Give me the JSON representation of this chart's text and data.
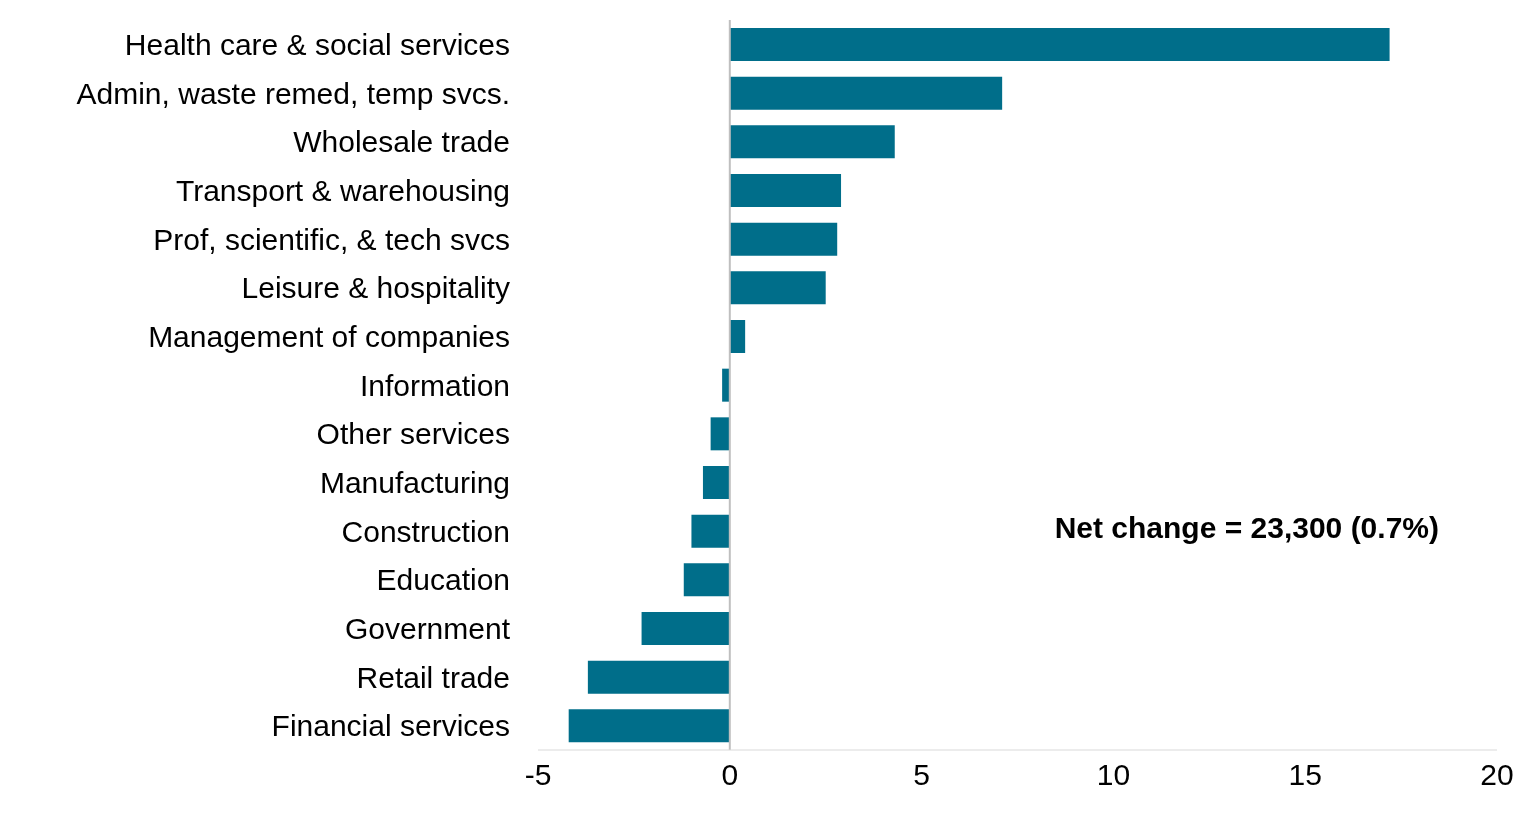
{
  "chart_data": {
    "type": "bar",
    "orientation": "horizontal",
    "categories": [
      "Health care & social services",
      "Admin, waste remed, temp svcs.",
      "Wholesale trade",
      "Transport & warehousing",
      "Prof, scientific, & tech svcs",
      "Leisure & hospitality",
      "Management of companies",
      "Information",
      "Other services",
      "Manufacturing",
      "Construction",
      "Education",
      "Government",
      "Retail trade",
      "Financial services"
    ],
    "values": [
      17.2,
      7.1,
      4.3,
      2.9,
      2.8,
      2.5,
      0.4,
      -0.2,
      -0.5,
      -0.7,
      -1.0,
      -1.2,
      -2.3,
      -3.7,
      -4.2
    ],
    "color": "#006e8a",
    "xlim": [
      -5,
      20
    ],
    "xticks": [
      -5,
      0,
      5,
      10,
      15,
      20
    ],
    "grid": false,
    "ref_lines": [
      {
        "axis": "x",
        "value": 0,
        "color": "#bfbfbf"
      }
    ],
    "annotations": [
      "Net change = 23,300 (0.7%)"
    ]
  }
}
